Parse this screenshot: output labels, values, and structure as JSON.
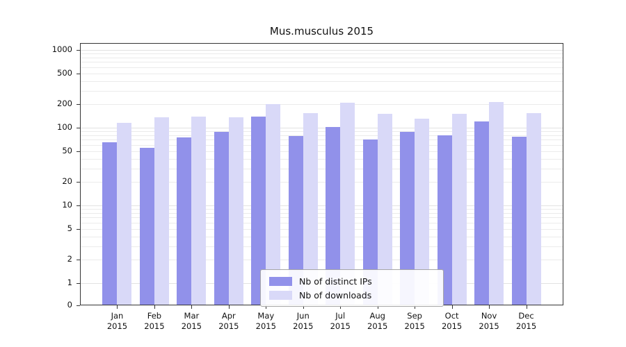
{
  "chart_data": {
    "type": "bar",
    "title": "Mus.musculus 2015",
    "categories": [
      "Jan",
      "Feb",
      "Mar",
      "Apr",
      "May",
      "Jun",
      "Jul",
      "Aug",
      "Sep",
      "Oct",
      "Nov",
      "Dec"
    ],
    "year": "2015",
    "series": [
      {
        "name": "Nb of distinct IPs",
        "color": "#9191ea",
        "values": [
          65,
          55,
          75,
          88,
          140,
          78,
          103,
          70,
          88,
          80,
          120,
          77
        ]
      },
      {
        "name": "Nb of downloads",
        "color": "#d9d9f8",
        "values": [
          115,
          135,
          140,
          135,
          200,
          155,
          210,
          150,
          130,
          150,
          215,
          155
        ]
      }
    ],
    "yticks": [
      0,
      1,
      2,
      5,
      10,
      20,
      50,
      100,
      200,
      500,
      1000
    ],
    "yscale": "log",
    "ylim": [
      0,
      1000
    ],
    "grid": true,
    "legend_position": "lower center",
    "colors": {
      "gridline_minor": "#ebebeb",
      "gridline_major": "#e2e2e2",
      "axis": "#333333"
    }
  }
}
